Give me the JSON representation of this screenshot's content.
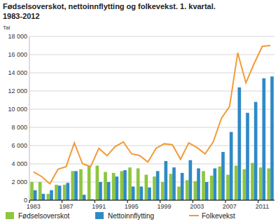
{
  "chart_data": {
    "type": "bar",
    "title": "Fødselsoverskot, nettoinnflytting og folkevekst. 1. kvartal.",
    "subtitle": "1983-2012",
    "y_label": "Tal",
    "categories": [
      "1983",
      null,
      null,
      null,
      "1987",
      null,
      null,
      null,
      "1991",
      null,
      null,
      null,
      "1995",
      null,
      null,
      null,
      "1999",
      null,
      null,
      null,
      "2003",
      null,
      null,
      null,
      "2007",
      null,
      null,
      null,
      "2011",
      null
    ],
    "series": [
      {
        "name": "Fødselsoverskot",
        "type": "bar",
        "color": "#8dc63f",
        "values": [
          2000,
          2000,
          700,
          1700,
          1700,
          3200,
          3400,
          3800,
          3800,
          3100,
          3000,
          3200,
          3600,
          3500,
          2800,
          2600,
          2000,
          2900,
          1500,
          2200,
          2100,
          3200,
          2700,
          3700,
          2800,
          3800,
          3400,
          4100,
          3600,
          3500
        ]
      },
      {
        "name": "Nettoinnflytting",
        "type": "bar",
        "color": "#2f8ac5",
        "values": [
          1100,
          700,
          1100,
          1600,
          1900,
          3200,
          600,
          100,
          2000,
          2000,
          2600,
          3300,
          1500,
          1500,
          1400,
          3200,
          4300,
          3600,
          3000,
          4400,
          3500,
          2000,
          3500,
          5300,
          7500,
          12400,
          9600,
          10800,
          13400,
          13600
        ]
      },
      {
        "name": "Folkevekst",
        "type": "line",
        "color": "#f29b38",
        "values": [
          3100,
          2600,
          1800,
          3400,
          3700,
          6300,
          4000,
          3700,
          5700,
          4900,
          5900,
          6400,
          5100,
          4900,
          4200,
          5700,
          6200,
          6100,
          4500,
          6300,
          5800,
          5100,
          6400,
          9000,
          10300,
          16200,
          12900,
          15000,
          16900,
          17000
        ]
      }
    ],
    "ylim": [
      0,
      18000
    ],
    "yticks": [
      0,
      {
        "value": 2000,
        "label": "2 000"
      },
      {
        "value": 4000,
        "label": "4 000"
      },
      {
        "value": 6000,
        "label": "6 000"
      },
      {
        "value": 8000,
        "label": "8 000"
      },
      {
        "value": 10000,
        "label": "10 000"
      },
      {
        "value": 12000,
        "label": "12 000"
      },
      {
        "value": 14000,
        "label": "14 000"
      },
      {
        "value": 16000,
        "label": "16 000"
      },
      {
        "value": 18000,
        "label": "18 000"
      }
    ],
    "grid": true,
    "legend": "bottom"
  }
}
